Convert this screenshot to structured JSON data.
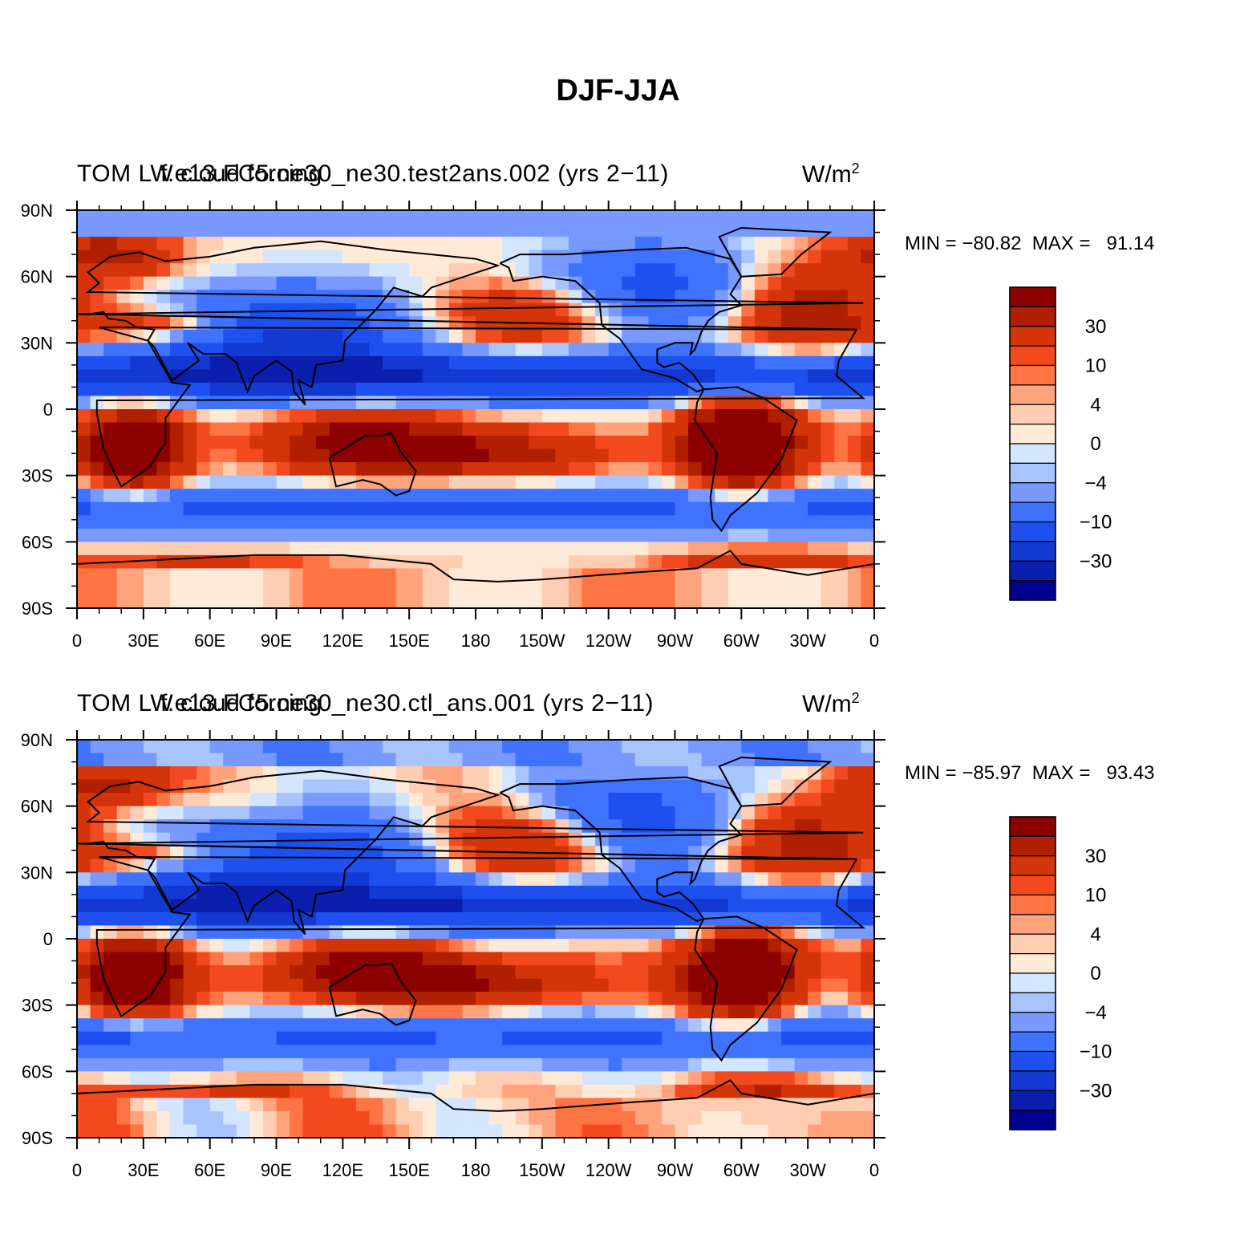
{
  "title": "DJF-JJA",
  "colors": {
    "palette": [
      "#00008f",
      "#0a1fae",
      "#1239d1",
      "#1e50f0",
      "#3e72ff",
      "#7899ff",
      "#a8c4ff",
      "#d4e6ff",
      "#ffead8",
      "#ffcdb2",
      "#ffa37c",
      "#ff7444",
      "#f24a1e",
      "#d43409",
      "#b02000",
      "#8c0000"
    ],
    "coast": "#000000"
  },
  "colorbar_labels": [
    "30",
    "10",
    "4",
    "0",
    "−4",
    "−10",
    "−30"
  ],
  "axes": {
    "lat_labels": [
      "90N",
      "60N",
      "30N",
      "0",
      "30S",
      "60S",
      "90S"
    ],
    "lon_labels": [
      "0",
      "30E",
      "60E",
      "90E",
      "120E",
      "150E",
      "180",
      "150W",
      "120W",
      "90W",
      "60W",
      "30W",
      "0"
    ]
  },
  "panels": [
    {
      "id": "test",
      "title_left": "TOM LW cloud forcing",
      "title_overlay": "f.e13.FC5.ne30_ne30.test2ans.002 (yrs 2−11)",
      "units_base": "W/m",
      "units_exp": "2",
      "min_label": "MIN = ",
      "min": "−80.82",
      "max_label": "MAX = ",
      "max": "91.14"
    },
    {
      "id": "ctl",
      "title_left": "TOM LW cloud forcing",
      "title_overlay": "f.e13.FC5.ne30_ne30.ctl_ans.001 (yrs 2−11)",
      "units_base": "W/m",
      "units_exp": "2",
      "min_label": "MIN = ",
      "min": "−85.97",
      "max_label": "MAX = ",
      "max": "93.43"
    }
  ]
}
